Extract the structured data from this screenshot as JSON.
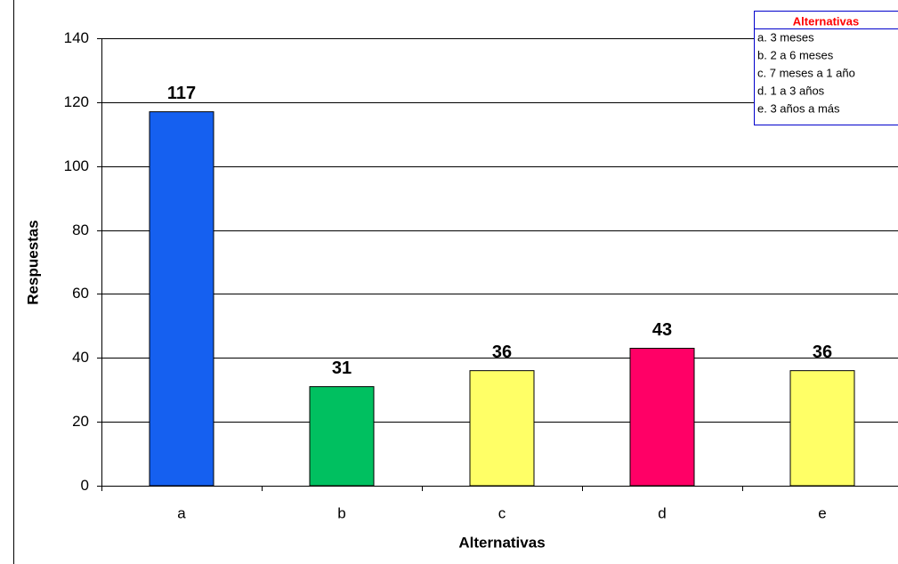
{
  "chart_data": {
    "type": "bar",
    "x_label": "Alternativas",
    "y_label": "Respuestas",
    "categories": [
      "a",
      "b",
      "c",
      "d",
      "e"
    ],
    "values": [
      117,
      31,
      36,
      43,
      36
    ],
    "colors": [
      "#1560f0",
      "#00c060",
      "#ffff66",
      "#ff0066",
      "#ffff66"
    ],
    "ylim": [
      0,
      140
    ],
    "yticks": [
      0,
      20,
      40,
      60,
      80,
      100,
      120,
      140
    ],
    "grid": true,
    "legend": {
      "title": "Alternativas",
      "items": [
        "a. 3 meses",
        "b. 2 a 6 meses",
        "c. 7 meses a 1 año",
        "d. 1 a 3 años",
        "e. 3 años a más"
      ]
    }
  }
}
